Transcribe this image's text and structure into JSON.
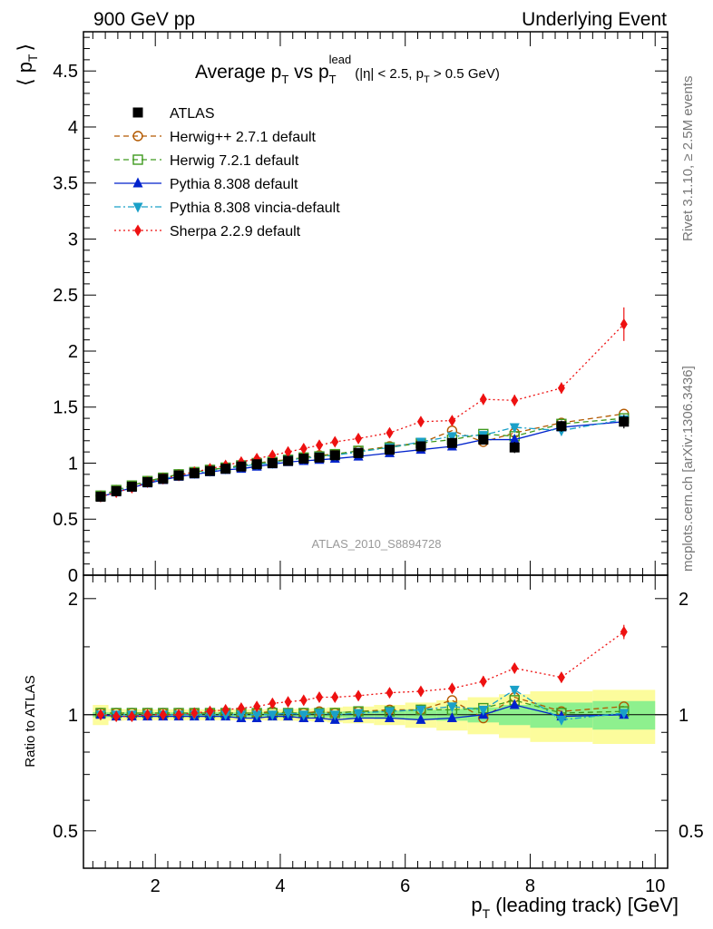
{
  "header": {
    "left": "900 GeV pp",
    "right": "Underlying Event"
  },
  "side_labels": {
    "rivet": "Rivet 3.1.10, ≥ 2.5M events",
    "mcplots": "mcplots.cern.ch [arXiv:1306.3436]"
  },
  "watermark": "ATLAS_2010_S8894728",
  "chart_data": [
    {
      "type": "scatter",
      "title": "Average p_T vs p_T^lead (|η| < 2.5, p_T > 0.5 GeV)",
      "title_parts": {
        "main": "Average p",
        "sub1": "T",
        "mid": " vs p",
        "sup": "lead",
        "sub2": "T",
        "cond": "(|η| < 2.5, p",
        "cond_sub": "T",
        "cond_end": " > 0.5 GeV)"
      },
      "ylabel": "⟨ p_T ⟩",
      "ylabel_parts": {
        "open": "⟨ p",
        "sub": "T",
        "close": "⟩"
      },
      "xlim": [
        0.85,
        10.2
      ],
      "ylim": [
        0,
        4.85
      ],
      "yticks": [
        0,
        0.5,
        1,
        1.5,
        2,
        2.5,
        3,
        3.5,
        4,
        4.5
      ],
      "ytick_labels": [
        "0",
        "0.5",
        "1",
        "1.5",
        "2",
        "2.5",
        "3",
        "3.5",
        "4",
        "4.5"
      ],
      "x": [
        1.125,
        1.375,
        1.625,
        1.875,
        2.125,
        2.375,
        2.625,
        2.875,
        3.125,
        3.375,
        3.625,
        3.875,
        4.125,
        4.375,
        4.625,
        4.875,
        5.25,
        5.75,
        6.25,
        6.75,
        7.25,
        7.75,
        8.5,
        9.5
      ],
      "series": [
        {
          "name": "ATLAS",
          "color": "#000000",
          "marker": "square-filled",
          "line": "none",
          "values": [
            0.7,
            0.75,
            0.79,
            0.83,
            0.86,
            0.89,
            0.91,
            0.93,
            0.95,
            0.97,
            0.99,
            1.0,
            1.02,
            1.04,
            1.05,
            1.07,
            1.09,
            1.12,
            1.15,
            1.18,
            1.21,
            1.14,
            1.33,
            1.37
          ],
          "errors": [
            0.01,
            0.01,
            0.01,
            0.01,
            0.01,
            0.01,
            0.01,
            0.01,
            0.01,
            0.01,
            0.01,
            0.01,
            0.01,
            0.01,
            0.01,
            0.01,
            0.02,
            0.02,
            0.02,
            0.03,
            0.04,
            0.05,
            0.05,
            0.06
          ]
        },
        {
          "name": "Herwig++ 2.7.1 default",
          "color": "#b35900",
          "marker": "circle-open",
          "line": "dashed",
          "values": [
            0.71,
            0.76,
            0.8,
            0.84,
            0.87,
            0.9,
            0.92,
            0.94,
            0.96,
            0.98,
            1.0,
            1.02,
            1.03,
            1.05,
            1.07,
            1.08,
            1.11,
            1.15,
            1.18,
            1.29,
            1.19,
            1.27,
            1.36,
            1.44
          ]
        },
        {
          "name": "Herwig 7.2.1 default",
          "color": "#3f9a1f",
          "marker": "square-open",
          "line": "dashed",
          "values": [
            0.71,
            0.76,
            0.8,
            0.84,
            0.87,
            0.9,
            0.92,
            0.94,
            0.96,
            0.98,
            1.0,
            1.01,
            1.03,
            1.05,
            1.06,
            1.08,
            1.11,
            1.14,
            1.18,
            1.21,
            1.26,
            1.24,
            1.35,
            1.4
          ]
        },
        {
          "name": "Pythia 8.308 default",
          "color": "#0022cc",
          "marker": "triangle-up-filled",
          "line": "solid",
          "values": [
            0.7,
            0.74,
            0.78,
            0.82,
            0.85,
            0.88,
            0.9,
            0.92,
            0.94,
            0.95,
            0.97,
            0.99,
            1.01,
            1.02,
            1.03,
            1.04,
            1.06,
            1.09,
            1.12,
            1.15,
            1.21,
            1.21,
            1.32,
            1.37
          ]
        },
        {
          "name": "Pythia 8.308 vincia-default",
          "color": "#1aa0c8",
          "marker": "triangle-down-filled",
          "line": "dashdot",
          "values": [
            0.7,
            0.75,
            0.79,
            0.83,
            0.86,
            0.89,
            0.91,
            0.93,
            0.95,
            0.97,
            0.99,
            1.0,
            1.03,
            1.04,
            1.06,
            1.07,
            1.1,
            1.14,
            1.19,
            1.24,
            1.25,
            1.32,
            1.29,
            1.39
          ]
        },
        {
          "name": "Sherpa 2.2.9 default",
          "color": "#ee1111",
          "marker": "diamond-filled",
          "line": "dotted",
          "values": [
            0.7,
            0.74,
            0.78,
            0.83,
            0.86,
            0.89,
            0.92,
            0.95,
            0.98,
            1.01,
            1.04,
            1.07,
            1.1,
            1.13,
            1.16,
            1.19,
            1.22,
            1.27,
            1.37,
            1.38,
            1.57,
            1.56,
            1.67,
            2.24
          ],
          "errors": [
            0.01,
            0.01,
            0.01,
            0.01,
            0.01,
            0.01,
            0.01,
            0.01,
            0.01,
            0.01,
            0.01,
            0.01,
            0.02,
            0.02,
            0.02,
            0.02,
            0.02,
            0.03,
            0.03,
            0.04,
            0.05,
            0.05,
            0.05,
            0.15
          ]
        }
      ],
      "legend_position": "top-left"
    },
    {
      "type": "scatter",
      "ylabel": "Ratio to ATLAS",
      "xlabel": "p_T (leading track) [GeV]",
      "xlabel_parts": {
        "main": "p",
        "sub": "T",
        "rest": " (leading track) [GeV]"
      },
      "xlim": [
        0.85,
        10.2
      ],
      "ylim": [
        0.4,
        2.3
      ],
      "log_y": true,
      "xticks": [
        2,
        4,
        6,
        8,
        10
      ],
      "xtick_labels": [
        "2",
        "4",
        "6",
        "8",
        "10"
      ],
      "yticks": [
        0.5,
        1,
        2
      ],
      "ytick_labels": [
        "0.5",
        "1",
        "2"
      ],
      "bands": {
        "edges": [
          1.0,
          1.25,
          1.5,
          1.75,
          2.0,
          2.25,
          2.5,
          2.75,
          3.0,
          3.25,
          3.5,
          3.75,
          4.0,
          4.25,
          4.5,
          4.75,
          5.0,
          5.5,
          6.0,
          6.5,
          7.0,
          7.5,
          8.0,
          9.0,
          10.0
        ],
        "green_half": [
          0.015,
          0.014,
          0.014,
          0.014,
          0.014,
          0.014,
          0.014,
          0.014,
          0.014,
          0.014,
          0.014,
          0.015,
          0.015,
          0.016,
          0.017,
          0.018,
          0.02,
          0.025,
          0.03,
          0.035,
          0.045,
          0.06,
          0.075,
          0.085
        ],
        "yellow_half": [
          0.06,
          0.035,
          0.033,
          0.032,
          0.032,
          0.032,
          0.032,
          0.032,
          0.032,
          0.032,
          0.033,
          0.034,
          0.035,
          0.037,
          0.04,
          0.045,
          0.05,
          0.06,
          0.075,
          0.09,
          0.11,
          0.13,
          0.15,
          0.16
        ],
        "green_color": "#8ef08e",
        "yellow_color": "#fcfc9c"
      },
      "series": [
        {
          "name": "Herwig++ 2.7.1 default",
          "color": "#b35900",
          "marker": "circle-open",
          "line": "dashed",
          "values": [
            1.01,
            1.01,
            1.01,
            1.01,
            1.01,
            1.01,
            1.01,
            1.01,
            1.01,
            1.01,
            1.01,
            1.02,
            1.01,
            1.01,
            1.02,
            1.01,
            1.02,
            1.03,
            1.03,
            1.09,
            0.98,
            1.11,
            1.02,
            1.05
          ]
        },
        {
          "name": "Herwig 7.2.1 default",
          "color": "#3f9a1f",
          "marker": "square-open",
          "line": "dashed",
          "values": [
            1.01,
            1.01,
            1.01,
            1.01,
            1.01,
            1.01,
            1.01,
            1.01,
            1.01,
            1.01,
            1.01,
            1.01,
            1.01,
            1.01,
            1.01,
            1.01,
            1.02,
            1.02,
            1.03,
            1.03,
            1.04,
            1.09,
            1.01,
            1.02
          ]
        },
        {
          "name": "Pythia 8.308 default",
          "color": "#0022cc",
          "marker": "triangle-up-filled",
          "line": "solid",
          "values": [
            1.0,
            0.99,
            0.99,
            0.99,
            0.99,
            0.99,
            0.99,
            0.99,
            0.99,
            0.98,
            0.98,
            0.99,
            0.99,
            0.98,
            0.98,
            0.97,
            0.98,
            0.98,
            0.97,
            0.98,
            1.0,
            1.06,
            0.99,
            1.0
          ]
        },
        {
          "name": "Pythia 8.308 vincia-default",
          "color": "#1aa0c8",
          "marker": "triangle-down-filled",
          "line": "dashdot",
          "values": [
            1.0,
            1.0,
            1.0,
            1.0,
            1.0,
            1.0,
            1.0,
            1.0,
            1.0,
            1.0,
            1.0,
            1.0,
            1.01,
            1.0,
            1.01,
            1.0,
            1.01,
            1.02,
            1.03,
            1.05,
            1.03,
            1.16,
            0.97,
            1.01
          ]
        },
        {
          "name": "Sherpa 2.2.9 default",
          "color": "#ee1111",
          "marker": "diamond-filled",
          "line": "dotted",
          "values": [
            1.0,
            0.99,
            0.99,
            1.0,
            1.0,
            1.0,
            1.01,
            1.02,
            1.03,
            1.04,
            1.05,
            1.07,
            1.08,
            1.09,
            1.11,
            1.11,
            1.12,
            1.14,
            1.15,
            1.17,
            1.22,
            1.32,
            1.25,
            1.64
          ],
          "errors": [
            0.01,
            0.01,
            0.01,
            0.01,
            0.01,
            0.01,
            0.01,
            0.01,
            0.01,
            0.01,
            0.01,
            0.01,
            0.01,
            0.01,
            0.01,
            0.01,
            0.02,
            0.02,
            0.02,
            0.03,
            0.04,
            0.04,
            0.04,
            0.07
          ]
        }
      ]
    }
  ]
}
